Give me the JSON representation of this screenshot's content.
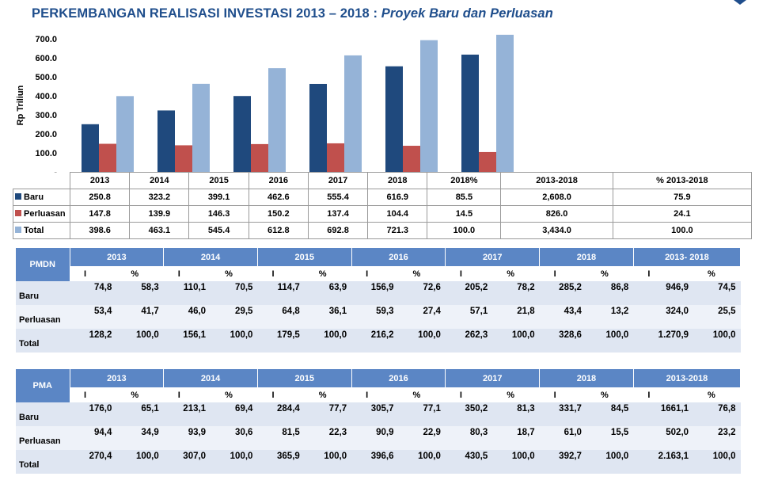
{
  "header": {
    "title": "PERKEMBANGAN REALISASI INVESTASI 2013 – 2018 :",
    "subtitle": "Proyek Baru dan Perluasan"
  },
  "colors": {
    "baru": "#1f497d",
    "perluasan": "#c0504d",
    "total": "#95b3d7",
    "title": "#1f4e8c",
    "table_header": "#5b86c5"
  },
  "chart_data": {
    "type": "bar",
    "ylabel": "Rp Triliun",
    "ylim": [
      0,
      700
    ],
    "yticks": [
      "-",
      "100.0",
      "200.0",
      "300.0",
      "400.0",
      "500.0",
      "600.0",
      "700.0"
    ],
    "categories": [
      "2013",
      "2014",
      "2015",
      "2016",
      "2017",
      "2018"
    ],
    "series": [
      {
        "name": "Baru",
        "color": "#1f497d",
        "values": [
          250.8,
          323.2,
          399.1,
          462.6,
          555.4,
          616.9
        ]
      },
      {
        "name": "Perluasan",
        "color": "#c0504d",
        "values": [
          147.8,
          139.9,
          146.3,
          150.2,
          137.4,
          104.4
        ]
      },
      {
        "name": "Total",
        "color": "#95b3d7",
        "values": [
          398.6,
          463.1,
          545.4,
          612.8,
          692.8,
          721.3
        ]
      }
    ],
    "legend": "data-table"
  },
  "chart_table": {
    "columns": [
      "2013",
      "2014",
      "2015",
      "2016",
      "2017",
      "2018",
      "2018%",
      "2013-2018",
      "% 2013-2018"
    ],
    "rows": [
      {
        "name": "Baru",
        "cells": [
          "250.8",
          "323.2",
          "399.1",
          "462.6",
          "555.4",
          "616.9",
          "85.5",
          "2,608.0",
          "75.9"
        ]
      },
      {
        "name": "Perluasan",
        "cells": [
          "147.8",
          "139.9",
          "146.3",
          "150.2",
          "137.4",
          "104.4",
          "14.5",
          "826.0",
          "24.1"
        ]
      },
      {
        "name": "Total",
        "cells": [
          "398.6",
          "463.1",
          "545.4",
          "612.8",
          "692.8",
          "721.3",
          "100.0",
          "3,434.0",
          "100.0"
        ]
      }
    ]
  },
  "pmdn": {
    "label": "PMDN",
    "years": [
      "2013",
      "2014",
      "2015",
      "2016",
      "2017",
      "2018",
      "2013- 2018"
    ],
    "sub": [
      "I",
      "%"
    ],
    "rows": [
      {
        "name": "Baru",
        "cells": [
          "74,8",
          "58,3",
          "110,1",
          "70,5",
          "114,7",
          "63,9",
          "156,9",
          "72,6",
          "205,2",
          "78,2",
          "285,2",
          "86,8",
          "946,9",
          "74,5"
        ]
      },
      {
        "name": "Perluasan",
        "cells": [
          "53,4",
          "41,7",
          "46,0",
          "29,5",
          "64,8",
          "36,1",
          "59,3",
          "27,4",
          "57,1",
          "21,8",
          "43,4",
          "13,2",
          "324,0",
          "25,5"
        ]
      },
      {
        "name": "Total",
        "cells": [
          "128,2",
          "100,0",
          "156,1",
          "100,0",
          "179,5",
          "100,0",
          "216,2",
          "100,0",
          "262,3",
          "100,0",
          "328,6",
          "100,0",
          "1.270,9",
          "100,0"
        ]
      }
    ]
  },
  "pma": {
    "label": "PMA",
    "years": [
      "2013",
      "2014",
      "2015",
      "2016",
      "2017",
      "2018",
      "2013-2018"
    ],
    "sub": [
      "I",
      "%"
    ],
    "rows": [
      {
        "name": "Baru",
        "cells": [
          "176,0",
          "65,1",
          "213,1",
          "69,4",
          "284,4",
          "77,7",
          "305,7",
          "77,1",
          "350,2",
          "81,3",
          "331,7",
          "84,5",
          "1661,1",
          "76,8"
        ]
      },
      {
        "name": "Perluasan",
        "cells": [
          "94,4",
          "34,9",
          "93,9",
          "30,6",
          "81,5",
          "22,3",
          "90,9",
          "22,9",
          "80,3",
          "18,7",
          "61,0",
          "15,5",
          "502,0",
          "23,2"
        ]
      },
      {
        "name": "Total",
        "cells": [
          "270,4",
          "100,0",
          "307,0",
          "100,0",
          "365,9",
          "100,0",
          "396,6",
          "100,0",
          "430,5",
          "100,0",
          "392,7",
          "100,0",
          "2.163,1",
          "100,0"
        ]
      }
    ]
  }
}
